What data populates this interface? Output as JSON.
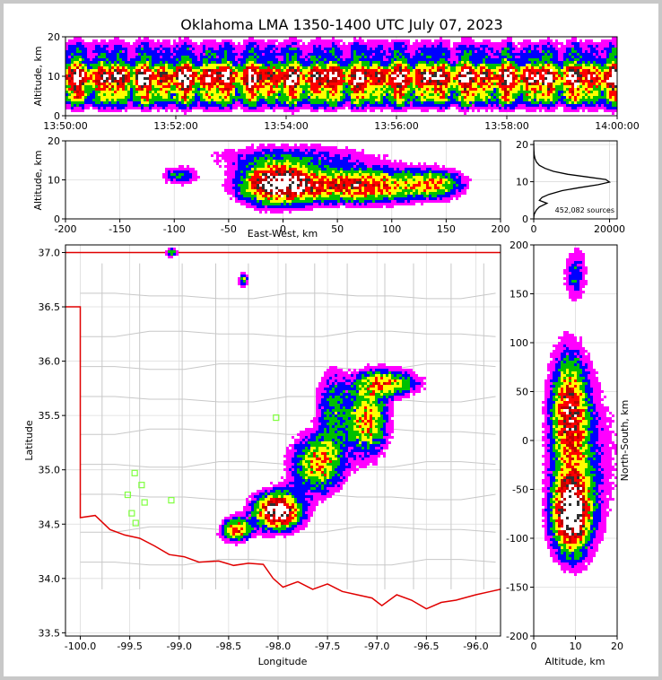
{
  "chart_data": [
    {
      "type": "heatmap",
      "title": "Oklahoma LMA 1350-1400 UTC July 07, 2023",
      "panel": "time-height",
      "ylabel": "Altitude, km",
      "xlabel": "",
      "x_tick_labels": [
        "13:50:00",
        "13:52:00",
        "13:54:00",
        "13:56:00",
        "13:58:00",
        "14:00:00"
      ],
      "ylim": [
        0,
        20
      ],
      "y_ticks": [
        0,
        10,
        20
      ]
    },
    {
      "type": "heatmap",
      "panel": "east-west-altitude",
      "xlabel": "East-West, km",
      "ylabel": "Altitude, km",
      "xlim": [
        -200,
        200
      ],
      "x_ticks": [
        -200,
        -150,
        -100,
        -50,
        0,
        50,
        100,
        150,
        200
      ],
      "ylim": [
        0,
        20
      ],
      "y_ticks": [
        0,
        10,
        20
      ]
    },
    {
      "type": "line",
      "panel": "altitude-histogram",
      "annotation": "452,082 sources",
      "xlim": [
        0,
        22000
      ],
      "x_ticks": [
        0,
        20000
      ],
      "ylim": [
        0,
        21
      ],
      "y_ticks": [
        0,
        10,
        20
      ],
      "series": [
        {
          "x": [
            0,
            20,
            120,
            400,
            700,
            1500,
            3500,
            1500,
            2200,
            4000,
            7500,
            12000,
            17000,
            20000,
            19000,
            14000,
            9000,
            5200,
            3000,
            1500,
            700,
            300,
            120,
            40,
            10
          ],
          "y": [
            0,
            0.5,
            1.2,
            1.8,
            2.4,
            3.2,
            4.2,
            5.0,
            5.8,
            6.6,
            7.6,
            8.4,
            9.2,
            9.9,
            10.6,
            11.3,
            12.0,
            12.8,
            13.6,
            14.4,
            15.3,
            16.3,
            17.3,
            18.5,
            20.5
          ]
        }
      ]
    },
    {
      "type": "heatmap",
      "panel": "plan-view",
      "xlabel": "Longitude",
      "ylabel": "Latitude",
      "xlim": [
        -100.15,
        -95.75
      ],
      "x_ticks": [
        -100.0,
        -99.5,
        -99.0,
        -98.5,
        -98.0,
        -97.5,
        -97.0,
        -96.5,
        -96.0
      ],
      "x_tick_labels": [
        "-100.0",
        "-99.5",
        "-99.0",
        "-98.5",
        "-98.0",
        "-97.5",
        "-97.0",
        "-96.5",
        "-96.0"
      ],
      "ylim": [
        33.47,
        37.07
      ],
      "y_ticks": [
        33.5,
        34.0,
        34.5,
        35.0,
        35.5,
        36.0,
        36.5,
        37.0
      ],
      "y_tick_labels": [
        "33.5",
        "34.0",
        "34.5",
        "35.0",
        "35.5",
        "36.0",
        "36.5",
        "37.0"
      ],
      "stations": [
        {
          "lon": -99.45,
          "lat": 34.97
        },
        {
          "lon": -99.38,
          "lat": 34.86
        },
        {
          "lon": -99.52,
          "lat": 34.77
        },
        {
          "lon": -99.35,
          "lat": 34.7
        },
        {
          "lon": -99.48,
          "lat": 34.6
        },
        {
          "lon": -99.44,
          "lat": 34.51
        },
        {
          "lon": -99.08,
          "lat": 34.72
        },
        {
          "lon": -98.02,
          "lat": 35.48
        }
      ]
    },
    {
      "type": "heatmap",
      "panel": "altitude-north-south",
      "xlabel": "Altitude, km",
      "ylabel": "North-South, km",
      "xlim": [
        0,
        20
      ],
      "x_ticks": [
        0,
        10,
        20
      ],
      "ylim": [
        -200,
        200
      ],
      "y_ticks": [
        -200,
        -150,
        -100,
        -50,
        0,
        50,
        100,
        150,
        200
      ]
    }
  ],
  "colors": {
    "density_scale": [
      "#ff00ff",
      "#0000ff",
      "#00c000",
      "#ffff00",
      "#ff0000",
      "#c00000",
      "#303030",
      "#ffffff"
    ],
    "state_border": "#e00000",
    "county_lines": "#c8c8c8",
    "station_marker": "#80ff40"
  }
}
